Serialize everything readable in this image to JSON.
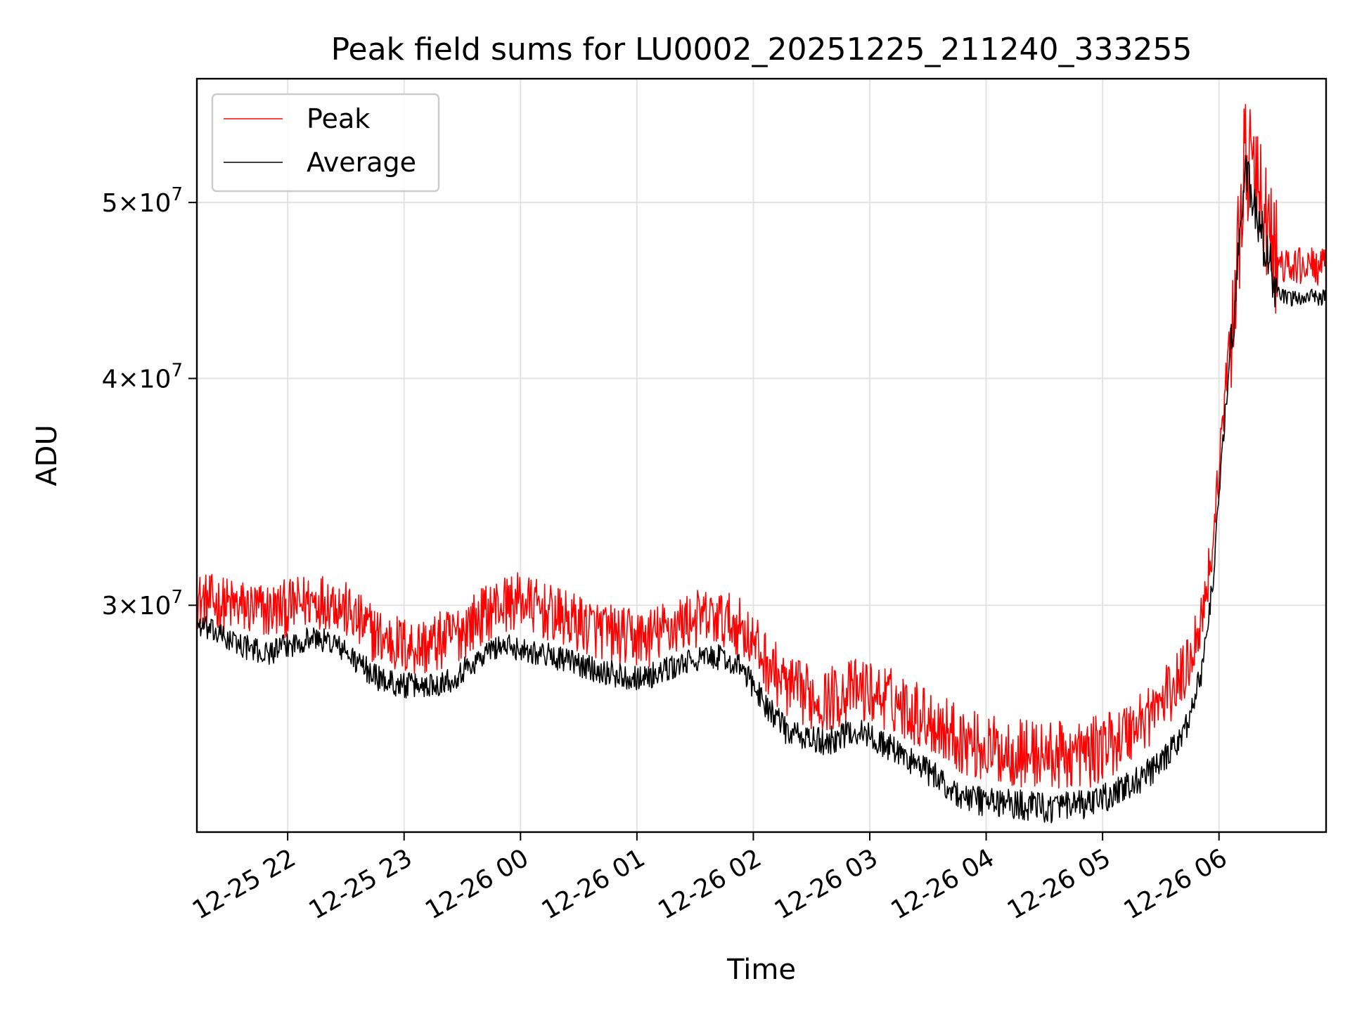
{
  "chart_data": {
    "type": "line",
    "title": "Peak field sums for LU0002_20251225_211240_333255",
    "xlabel": "Time",
    "ylabel": "ADU",
    "y_scale": "log",
    "xlim_hours": [
      -2.78,
      6.92
    ],
    "ylim": [
      22500000,
      58500000
    ],
    "grid": true,
    "legend_position": "upper-left",
    "x_ticks": [
      {
        "hour": -2,
        "label": "12-25 22"
      },
      {
        "hour": -1,
        "label": "12-25 23"
      },
      {
        "hour": 0,
        "label": "12-26 00"
      },
      {
        "hour": 1,
        "label": "12-26 01"
      },
      {
        "hour": 2,
        "label": "12-26 02"
      },
      {
        "hour": 3,
        "label": "12-26 03"
      },
      {
        "hour": 4,
        "label": "12-26 04"
      },
      {
        "hour": 5,
        "label": "12-26 05"
      },
      {
        "hour": 6,
        "label": "12-26 06"
      }
    ],
    "y_ticks": [
      {
        "value": 30000000,
        "mantissa": "3",
        "exponent": "7"
      },
      {
        "value": 40000000,
        "mantissa": "4",
        "exponent": "7"
      },
      {
        "value": 50000000,
        "mantissa": "5",
        "exponent": "7"
      }
    ],
    "series": [
      {
        "name": "Peak",
        "color": "#ff0000",
        "noise": 1100000,
        "x": [
          -2.78,
          -2.5,
          -2.2,
          -2.0,
          -1.8,
          -1.6,
          -1.4,
          -1.2,
          -1.0,
          -0.8,
          -0.6,
          -0.4,
          -0.2,
          0.0,
          0.3,
          0.6,
          0.9,
          1.1,
          1.3,
          1.5,
          1.7,
          1.9,
          2.1,
          2.3,
          2.6,
          2.9,
          3.2,
          3.5,
          3.8,
          4.0,
          4.3,
          4.6,
          4.9,
          5.2,
          5.5,
          5.7,
          5.85,
          5.95,
          6.05,
          6.15,
          6.22,
          6.3,
          6.4,
          6.5,
          6.6,
          6.75,
          6.92
        ],
        "y": [
          30200000,
          30000000,
          29800000,
          29900000,
          30200000,
          30200000,
          29400000,
          28800000,
          28500000,
          28500000,
          28800000,
          29400000,
          30000000,
          30200000,
          29600000,
          29200000,
          28800000,
          28800000,
          29200000,
          29500000,
          29500000,
          29200000,
          28000000,
          27000000,
          26600000,
          27000000,
          26600000,
          26000000,
          25300000,
          25000000,
          24900000,
          24800000,
          24900000,
          25500000,
          26500000,
          27500000,
          29500000,
          32500000,
          39000000,
          46000000,
          53000000,
          52000000,
          49000000,
          46300000,
          46000000,
          46200000,
          46000000
        ]
      },
      {
        "name": "Average",
        "color": "#000000",
        "noise": 450000,
        "x": [
          -2.78,
          -2.5,
          -2.2,
          -2.0,
          -1.8,
          -1.6,
          -1.4,
          -1.2,
          -1.0,
          -0.8,
          -0.6,
          -0.4,
          -0.2,
          0.0,
          0.3,
          0.6,
          0.9,
          1.1,
          1.3,
          1.5,
          1.7,
          1.9,
          2.1,
          2.3,
          2.6,
          2.9,
          3.2,
          3.5,
          3.8,
          4.0,
          4.3,
          4.6,
          4.9,
          5.2,
          5.5,
          5.7,
          5.85,
          5.95,
          6.05,
          6.15,
          6.22,
          6.3,
          6.4,
          6.5,
          6.6,
          6.75,
          6.92
        ],
        "y": [
          29300000,
          28700000,
          28200000,
          28500000,
          28800000,
          28600000,
          27900000,
          27300000,
          27100000,
          27100000,
          27300000,
          27900000,
          28500000,
          28400000,
          28100000,
          27700000,
          27400000,
          27400000,
          27700000,
          28000000,
          28100000,
          27700000,
          26500000,
          25500000,
          25200000,
          25600000,
          25000000,
          24300000,
          23500000,
          23400000,
          23300000,
          23200000,
          23300000,
          23800000,
          24500000,
          25500000,
          27500000,
          31000000,
          38000000,
          45000000,
          52000000,
          50000000,
          47000000,
          44500000,
          44200000,
          44400000,
          44300000
        ]
      }
    ]
  }
}
